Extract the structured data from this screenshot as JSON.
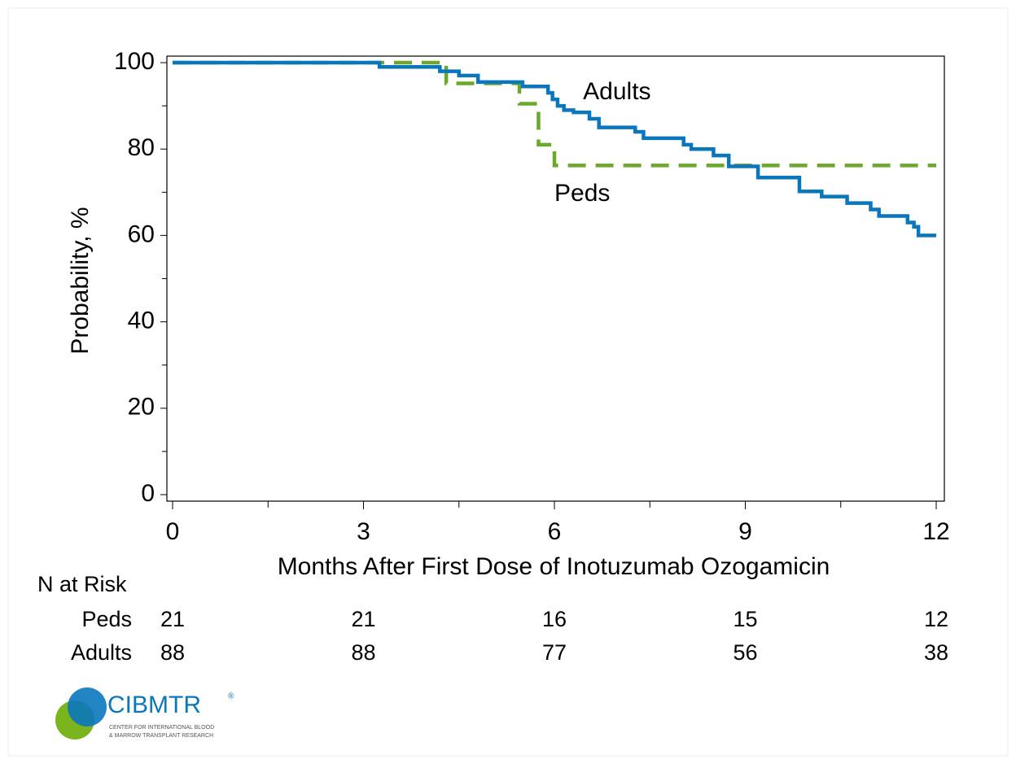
{
  "chart_data": {
    "type": "step",
    "xlabel": "Months After First Dose of Inotuzumab Ozogamicin",
    "ylabel": "Probability, %",
    "xlim": [
      0,
      12
    ],
    "xticks": [
      0,
      3,
      6,
      9,
      12
    ],
    "x_minor_ticks": [
      1.5,
      4.5,
      7.5,
      10.5
    ],
    "ylim": [
      0,
      100
    ],
    "yticks": [
      0,
      20,
      40,
      60,
      80,
      100
    ],
    "y_minor_ticks": [
      10,
      30,
      50,
      70,
      90
    ],
    "series": [
      {
        "name": "Adults",
        "color": "#0a77bd",
        "dash": false,
        "x": [
          0,
          3.25,
          4.2,
          4.5,
          4.8,
          5.5,
          5.9,
          5.97,
          6.05,
          6.15,
          6.3,
          6.55,
          6.7,
          7.27,
          7.4,
          8.03,
          8.15,
          8.5,
          8.74,
          9.2,
          9.85,
          10.2,
          10.6,
          10.97,
          11.1,
          11.55,
          11.65,
          11.72,
          12
        ],
        "values": [
          100,
          99,
          98,
          97,
          95.5,
          94.5,
          93,
          91.5,
          90,
          89,
          88.5,
          87,
          85,
          84,
          82.5,
          81,
          80,
          78.5,
          76,
          73.4,
          70.2,
          69,
          67.5,
          66,
          64.5,
          63,
          62,
          60,
          60
        ]
      },
      {
        "name": "Peds",
        "color": "#6aaa2a",
        "dash": true,
        "x": [
          0,
          4.3,
          5.45,
          5.75,
          6.0,
          12
        ],
        "values": [
          100,
          95.2,
          90.5,
          81,
          76.2,
          76.2
        ]
      }
    ],
    "annotations": [
      {
        "text": "Adults",
        "x": 6.45,
        "y": 93
      },
      {
        "text": "Peds",
        "x": 6.0,
        "y": 69.5
      }
    ],
    "risk_table": {
      "title": "N at Risk",
      "x": [
        0,
        3,
        6,
        9,
        12
      ],
      "rows": [
        {
          "name": "Peds",
          "values": [
            21,
            21,
            16,
            15,
            12
          ]
        },
        {
          "name": "Adults",
          "values": [
            88,
            88,
            77,
            56,
            38
          ]
        }
      ]
    }
  },
  "logo": {
    "name": "CIBMTR",
    "mark": "®",
    "line1": "CENTER FOR INTERNATIONAL BLOOD",
    "line2": "& MARROW TRANSPLANT RESEARCH"
  }
}
